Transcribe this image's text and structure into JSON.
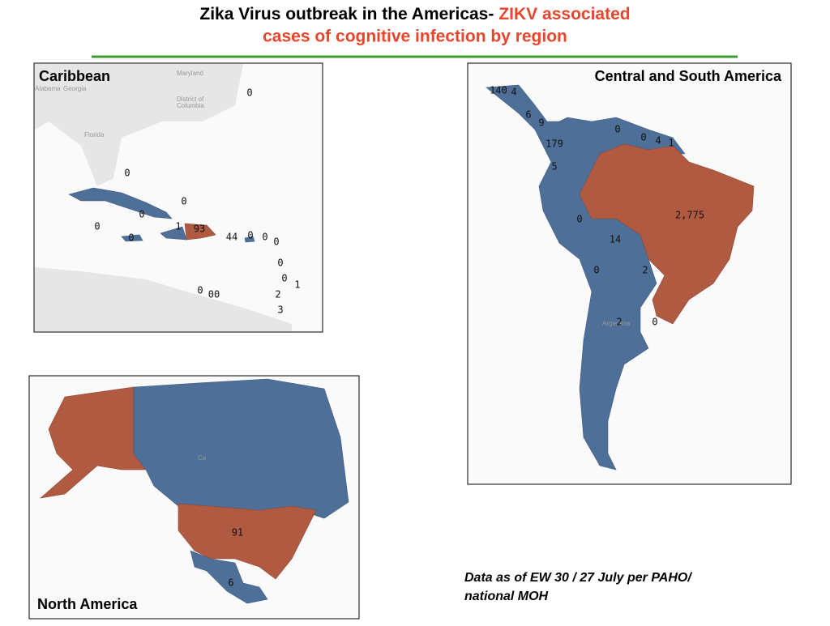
{
  "title": {
    "black": "Zika Virus outbreak in the Americas-",
    "red1": "ZIKV associated",
    "red2": "cases of cognitive infection by region"
  },
  "panels": [
    {
      "title": "Caribbean",
      "place_names": [
        "Maryland",
        "Alabama",
        "Georgia",
        "District of",
        "Columbia",
        "Florida"
      ],
      "labels": [
        "0",
        "0",
        "0",
        "0",
        "0",
        "1",
        "93",
        "44",
        "0",
        "0",
        "0",
        "0",
        "0",
        "0",
        "1",
        "0",
        "00",
        "2",
        "3"
      ]
    },
    {
      "title": "Central and South America",
      "place_names": [
        "Argentina"
      ],
      "labels": [
        "140",
        "4",
        "6",
        "9",
        "0",
        "0",
        "4",
        "1",
        "179",
        "5",
        "2,775",
        "0",
        "14",
        "0",
        "2",
        "2",
        "0"
      ]
    },
    {
      "title": "North America",
      "place_names": [
        "Ca"
      ],
      "labels": [
        "91",
        "6"
      ]
    }
  ],
  "footnote": "Data as of EW 30 / 27 July per PAHO/ national MOH"
}
